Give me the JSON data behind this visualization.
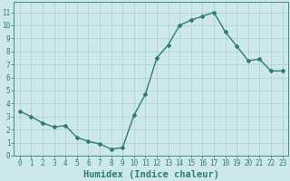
{
  "x": [
    0,
    1,
    2,
    3,
    4,
    5,
    6,
    7,
    8,
    9,
    10,
    11,
    12,
    13,
    14,
    15,
    16,
    17,
    18,
    19,
    20,
    21,
    22,
    23
  ],
  "y": [
    3.4,
    3.0,
    2.5,
    2.2,
    2.3,
    1.4,
    1.1,
    0.9,
    0.5,
    0.6,
    3.1,
    4.7,
    7.5,
    8.5,
    10.0,
    10.4,
    10.7,
    11.0,
    9.5,
    8.4,
    7.3,
    7.4,
    6.5,
    6.5
  ],
  "line_color": "#2e7d6e",
  "marker": "D",
  "marker_size": 2.0,
  "linewidth": 1.0,
  "bg_color": "#cce8e8",
  "grid_color": "#aacfcf",
  "xlabel": "Humidex (Indice chaleur)",
  "xlabel_fontsize": 7.5,
  "xlim": [
    -0.5,
    23.5
  ],
  "ylim": [
    0,
    11.8
  ],
  "yticks": [
    0,
    1,
    2,
    3,
    4,
    5,
    6,
    7,
    8,
    9,
    10,
    11
  ],
  "xticks": [
    0,
    1,
    2,
    3,
    4,
    5,
    6,
    7,
    8,
    9,
    10,
    11,
    12,
    13,
    14,
    15,
    16,
    17,
    18,
    19,
    20,
    21,
    22,
    23
  ],
  "tick_fontsize": 5.5,
  "tick_color": "#2e7d6e",
  "spine_color": "#2e7d6e"
}
